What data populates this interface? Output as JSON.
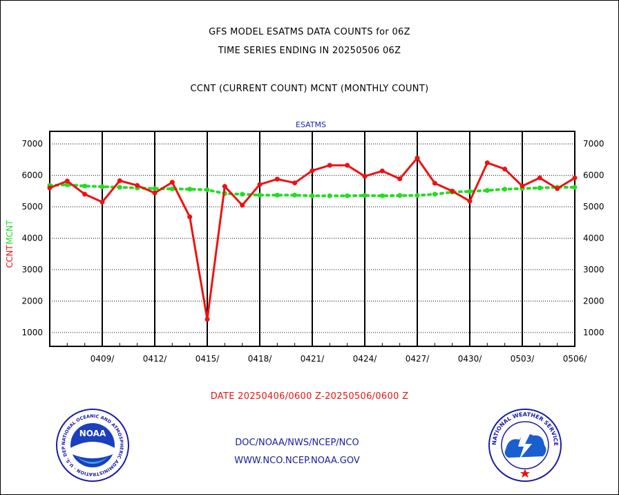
{
  "header": {
    "title_line1": "GFS MODEL ESATMS DATA COUNTS for 06Z",
    "title_line2": "TIME SERIES ENDING IN 20250506 06Z",
    "subtitle": "CCNT (CURRENT COUNT) MCNT (MONTHLY COUNT)"
  },
  "footer": {
    "date_range": "DATE 20250406/0600 Z-20250506/0600 Z",
    "link1": "DOC/NOAA/NWS/NCEP/NCO",
    "link2": "WWW.NCO.NCEP.NOAA.GOV"
  },
  "logos": {
    "noaa_text": "NOAA",
    "noaa_ring": "NATIONAL OCEANIC AND ATMOSPHERIC ADMINISTRATION · U.S. DEPARTMENT OF COMMERCE ·",
    "nws_ring": "NATIONAL WEATHER SERVICE"
  },
  "colors": {
    "ccnt": "#ee1111",
    "mcnt": "#22dd22",
    "plot_title": "#1a1ab0",
    "date_text": "#ee1111"
  },
  "chart_data": {
    "type": "line",
    "title": "ESATMS",
    "ylabel_ccnt": "CCNT",
    "ylabel_mcnt": "MCNT",
    "ylim": [
      560,
      7400
    ],
    "yticks": [
      1000,
      2000,
      3000,
      4000,
      5000,
      6000,
      7000
    ],
    "xlim": [
      0,
      30
    ],
    "x_ticks": [
      {
        "x": 3,
        "label": "0409/"
      },
      {
        "x": 6,
        "label": "0412/"
      },
      {
        "x": 9,
        "label": "0415/"
      },
      {
        "x": 12,
        "label": "0418/"
      },
      {
        "x": 15,
        "label": "0421/"
      },
      {
        "x": 18,
        "label": "0424/"
      },
      {
        "x": 21,
        "label": "0427/"
      },
      {
        "x": 24,
        "label": "0430/"
      },
      {
        "x": 27,
        "label": "0503/"
      },
      {
        "x": 30,
        "label": "0506/"
      }
    ],
    "grid": true,
    "series": [
      {
        "name": "CCNT",
        "x": [
          0,
          1,
          2,
          3,
          4,
          5,
          6,
          7,
          8,
          9,
          10,
          11,
          12,
          13,
          14,
          15,
          16,
          17,
          18,
          19,
          20,
          21,
          22,
          23,
          24,
          25,
          26,
          27,
          28,
          29,
          30
        ],
        "values": [
          5600,
          5820,
          5400,
          5150,
          5830,
          5680,
          5440,
          5780,
          4680,
          1420,
          5650,
          5050,
          5710,
          5880,
          5760,
          6150,
          6320,
          6320,
          5970,
          6140,
          5890,
          6550,
          5750,
          5500,
          5180,
          6400,
          6200,
          5660,
          5920,
          5580,
          5920
        ]
      },
      {
        "name": "MCNT",
        "x": [
          0,
          1,
          2,
          3,
          4,
          5,
          6,
          7,
          8,
          9,
          10,
          11,
          12,
          13,
          14,
          15,
          16,
          17,
          18,
          19,
          20,
          21,
          22,
          23,
          24,
          25,
          26,
          27,
          28,
          29,
          30
        ],
        "values": [
          5680,
          5700,
          5660,
          5640,
          5620,
          5600,
          5580,
          5570,
          5560,
          5540,
          5420,
          5400,
          5370,
          5370,
          5370,
          5350,
          5350,
          5350,
          5360,
          5350,
          5360,
          5360,
          5400,
          5470,
          5490,
          5520,
          5560,
          5580,
          5600,
          5620,
          5620
        ]
      }
    ]
  }
}
